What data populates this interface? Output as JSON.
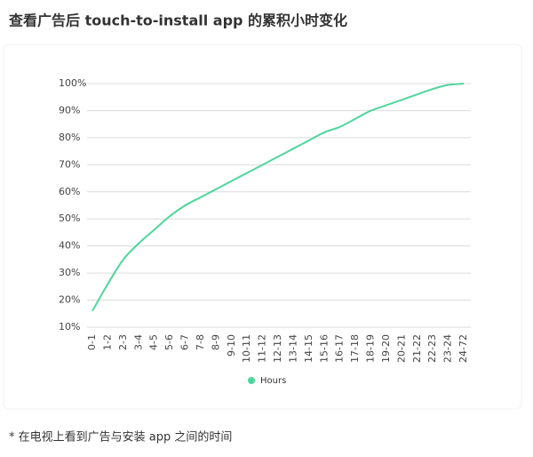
{
  "chart_data": {
    "type": "line",
    "title": "查看广告后 touch-to-install app 的累积小时变化",
    "categories": [
      "0-1",
      "1-2",
      "2-3",
      "3-4",
      "4-5",
      "5-6",
      "6-7",
      "7-8",
      "8-9",
      "9-10",
      "10-11",
      "11-12",
      "12-13",
      "13-14",
      "14-15",
      "15-16",
      "16-17",
      "17-18",
      "18-19",
      "19-20",
      "20-21",
      "21-22",
      "22-23",
      "23-24",
      "24-72"
    ],
    "series": [
      {
        "name": "Hours",
        "color": "#4fd69c",
        "values": [
          16,
          26,
          35,
          41,
          46,
          51,
          55,
          58,
          61,
          64,
          67,
          70,
          73,
          76,
          79,
          82,
          84,
          87,
          90,
          92,
          94,
          96,
          98,
          99.5,
          100
        ]
      }
    ],
    "ylim": [
      10,
      100
    ],
    "yticks": [
      {
        "value": 10,
        "label": "10%"
      },
      {
        "value": 20,
        "label": "20%"
      },
      {
        "value": 30,
        "label": "30%"
      },
      {
        "value": 40,
        "label": "40%"
      },
      {
        "value": 50,
        "label": "50%"
      },
      {
        "value": 60,
        "label": "60%"
      },
      {
        "value": 70,
        "label": "70%"
      },
      {
        "value": 80,
        "label": "80%"
      },
      {
        "value": 90,
        "label": "90%"
      },
      {
        "value": 100,
        "label": "100%"
      }
    ],
    "grid": true,
    "legend": "bottom",
    "footnote": "* 在电视上看到广告与安装 app 之间的时间"
  }
}
